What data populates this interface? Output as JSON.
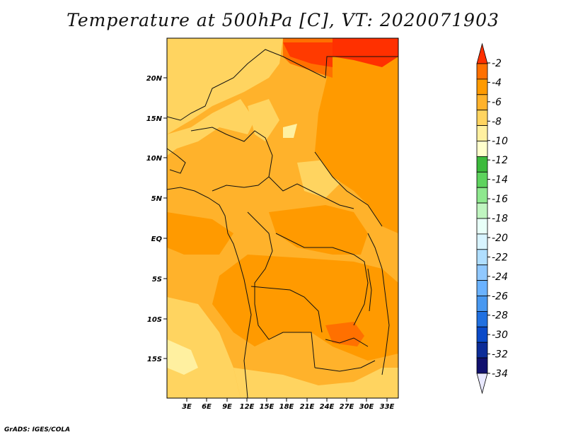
{
  "title": "Temperature at 500hPa [C], VT: 2020071903",
  "credit": "GrADS: IGES/COLA",
  "map": {
    "lat_labels": [
      "20N",
      "15N",
      "10N",
      "5N",
      "EQ",
      "5S",
      "10S",
      "15S"
    ],
    "lon_labels": [
      "3E",
      "6E",
      "9E",
      "12E",
      "15E",
      "18E",
      "21E",
      "24E",
      "27E",
      "30E",
      "33E"
    ]
  },
  "colorbar": {
    "labels": [
      "-2",
      "-4",
      "-6",
      "-8",
      "-10",
      "-12",
      "-14",
      "-16",
      "-18",
      "-20",
      "-22",
      "-24",
      "-26",
      "-28",
      "-30",
      "-32",
      "-34"
    ],
    "colors": [
      "#ff3000",
      "#ff7000",
      "#ff9a00",
      "#ffb22b",
      "#ffd460",
      "#fff0a0",
      "#ffffcc",
      "#3cba3c",
      "#5ed35e",
      "#8ee88e",
      "#c0f5c0",
      "#e8fff8",
      "#d8f4ff",
      "#b0deff",
      "#90c8ff",
      "#6ab2ff",
      "#4898f0",
      "#2070e0",
      "#0a4ac8",
      "#0c2c98",
      "#10106e",
      "#e8e8ff"
    ]
  }
}
